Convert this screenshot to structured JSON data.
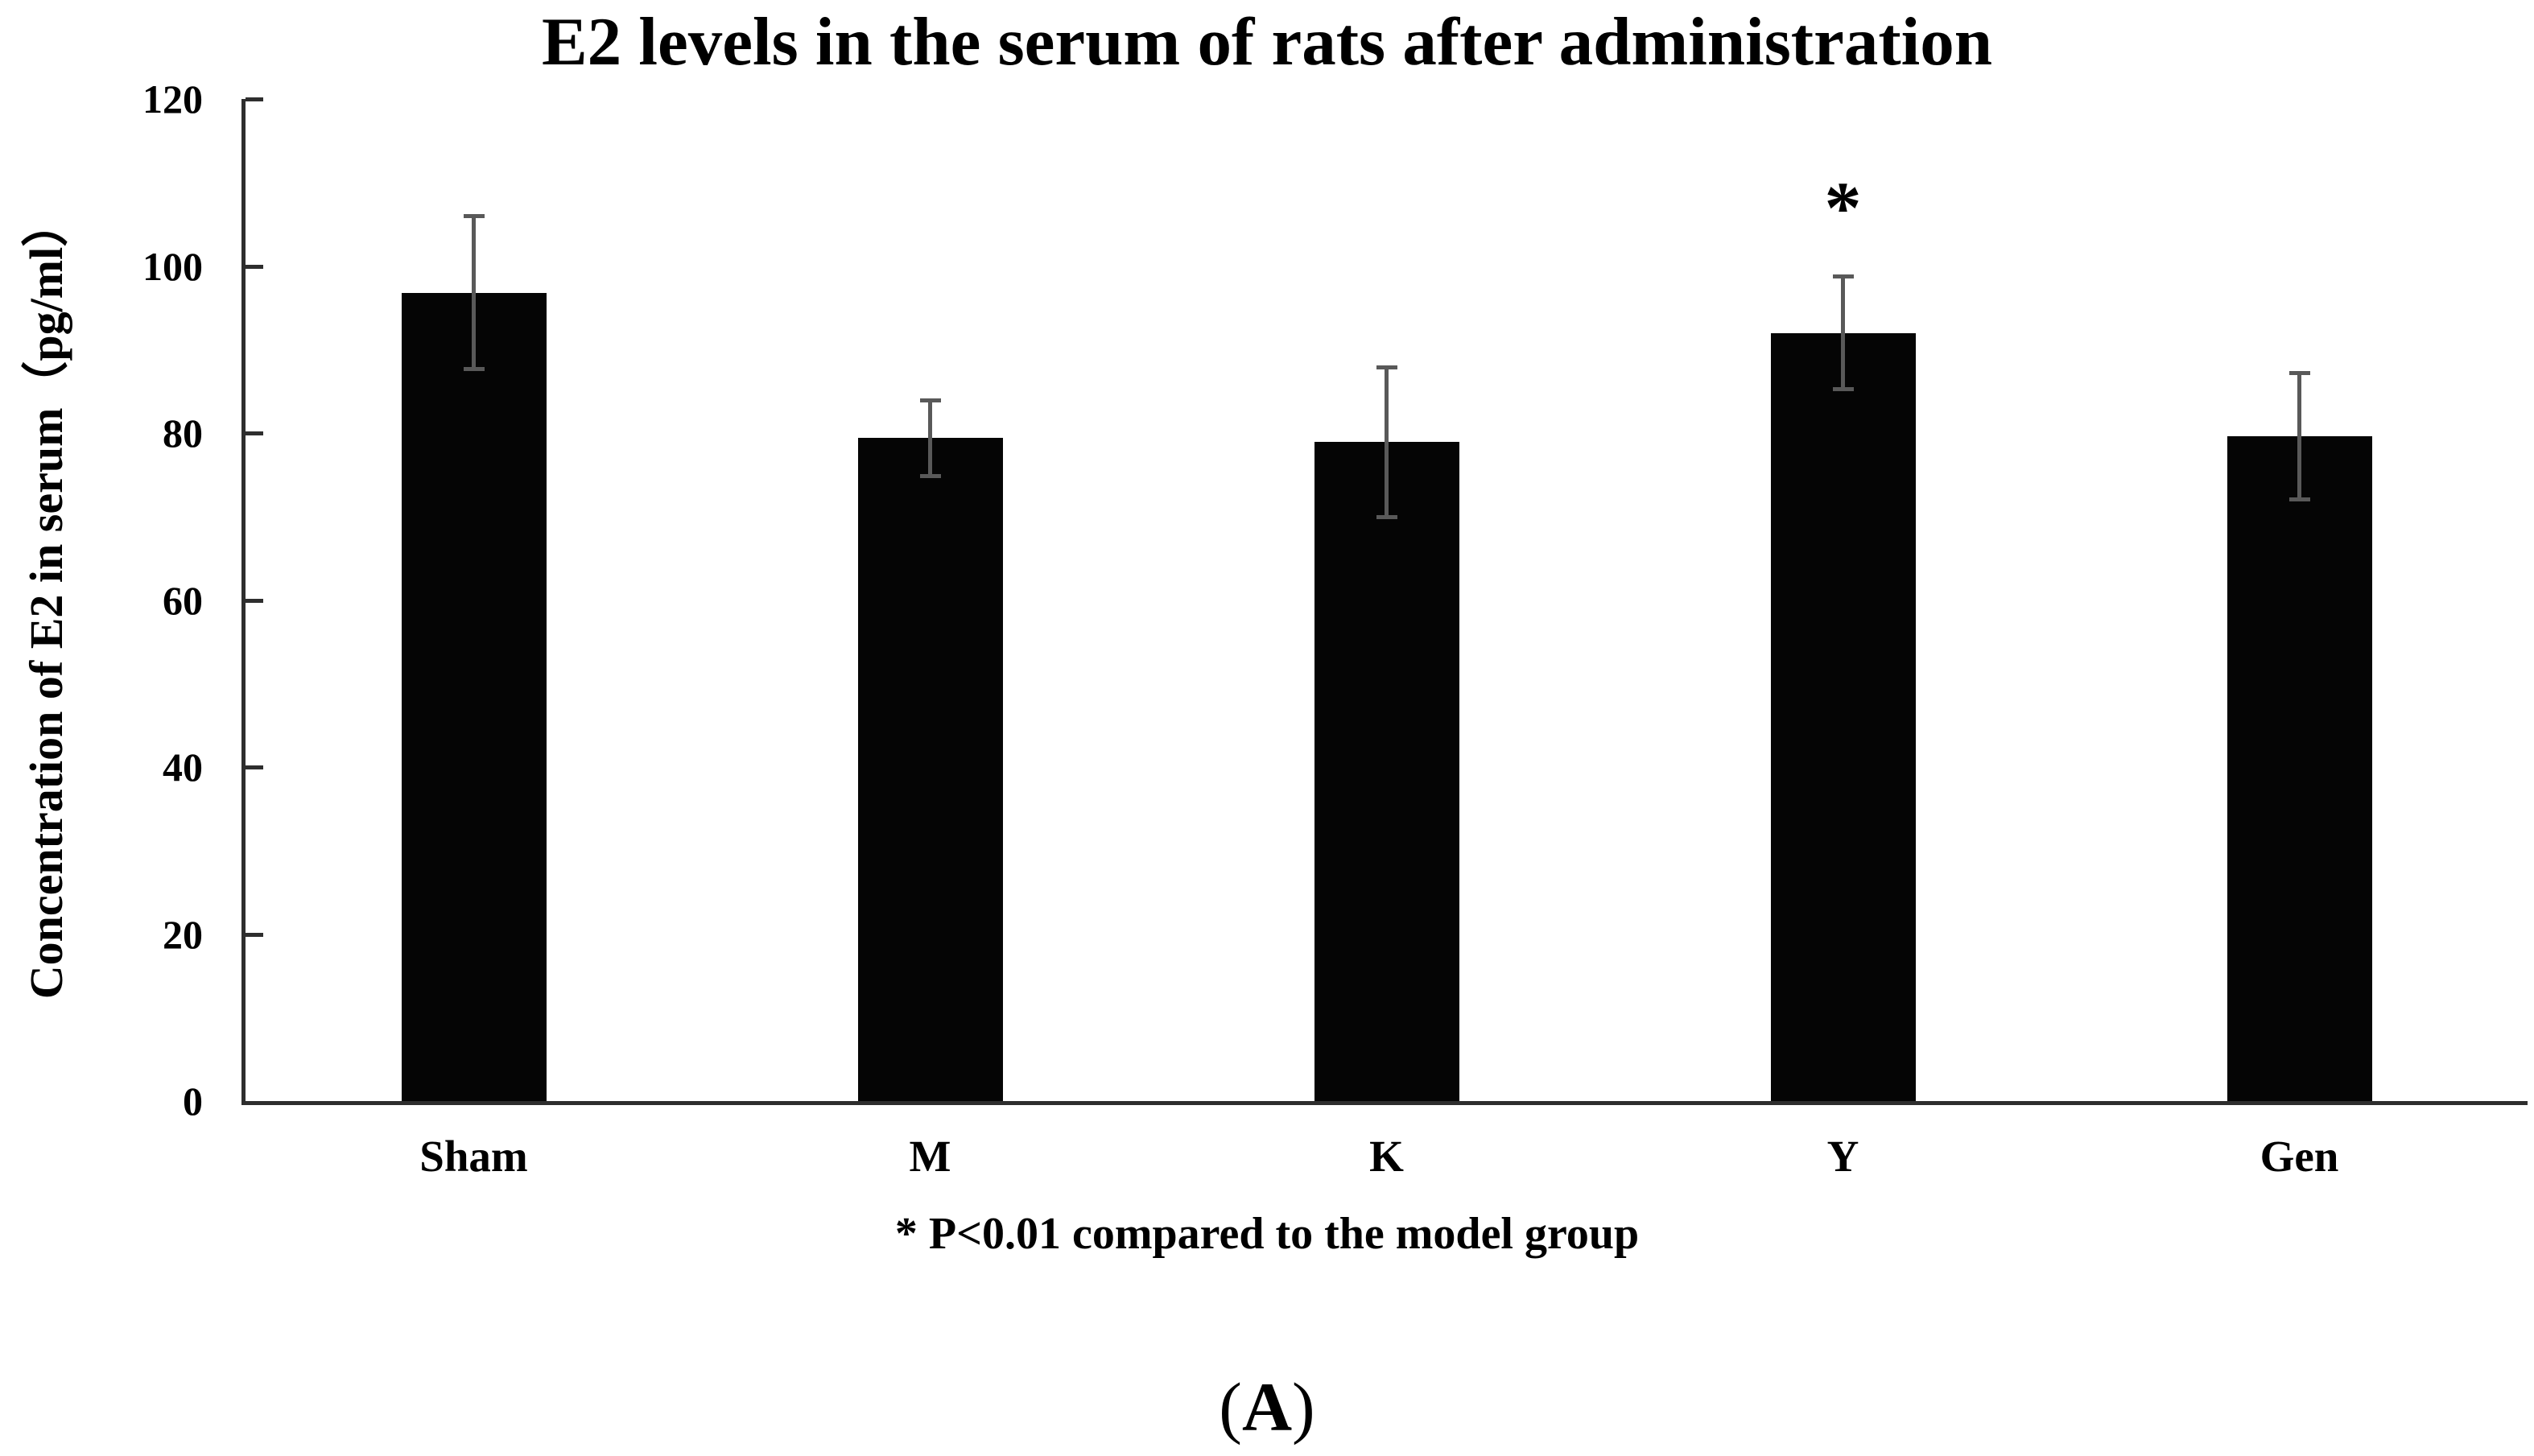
{
  "figure": {
    "panel_paren_open": "(",
    "panel_letter": "A",
    "panel_paren_close": ")"
  },
  "chart_data": {
    "type": "bar",
    "title": "E2 levels in the serum of rats after administration",
    "xlabel": "",
    "ylabel": "Concentration of E2 in serum（pg/ml）",
    "footnote": "* P<0.01 compared to the model group",
    "categories": [
      "Sham",
      "M",
      "K",
      "Y",
      "Gen"
    ],
    "values": [
      96.8,
      79.4,
      78.9,
      92.0,
      79.6
    ],
    "errors": [
      9.2,
      4.6,
      9.0,
      6.8,
      7.6
    ],
    "significance": [
      "",
      "",
      "",
      "*",
      ""
    ],
    "ylim": [
      0,
      120
    ],
    "ytick_step": 20,
    "yticks": [
      0,
      20,
      40,
      60,
      80,
      100,
      120
    ],
    "grid": false,
    "legend_position": "none",
    "bar_color": "#050505",
    "error_bar_color": "#595959",
    "axis_color": "#2e2e2e",
    "text_color": "#000000"
  }
}
